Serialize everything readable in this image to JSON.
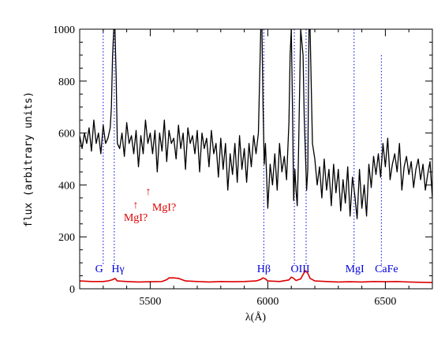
{
  "chart_data": {
    "type": "line",
    "title": "",
    "xlabel": "λ(Å)",
    "ylabel": "flux (arbitrary units)",
    "xlim": [
      5200,
      6700
    ],
    "ylim": [
      0,
      1000
    ],
    "x_ticks": [
      5500,
      6000,
      6500
    ],
    "y_ticks": [
      0,
      200,
      400,
      600,
      800,
      1000
    ],
    "grid": false,
    "colors": {
      "spectrum": "#000000",
      "error": "#dd0000",
      "lines": "#0000dd",
      "annotation": "#dd0000"
    },
    "series": [
      {
        "name": "",
        "x": [
          5200,
          5210,
          5220,
          5230,
          5240,
          5250,
          5260,
          5270,
          5280,
          5290,
          5300,
          5310,
          5320,
          5330,
          5335,
          5340,
          5345,
          5350,
          5355,
          5360,
          5370,
          5380,
          5390,
          5400,
          5410,
          5420,
          5430,
          5440,
          5450,
          5460,
          5470,
          5480,
          5490,
          5500,
          5510,
          5520,
          5530,
          5540,
          5550,
          5560,
          5570,
          5580,
          5590,
          5600,
          5610,
          5620,
          5630,
          5640,
          5650,
          5660,
          5670,
          5680,
          5690,
          5700,
          5710,
          5720,
          5730,
          5740,
          5750,
          5760,
          5770,
          5780,
          5790,
          5800,
          5810,
          5820,
          5830,
          5840,
          5850,
          5860,
          5870,
          5880,
          5890,
          5900,
          5910,
          5920,
          5930,
          5940,
          5950,
          5960,
          5965,
          5970,
          5975,
          5980,
          5985,
          5990,
          6000,
          6010,
          6020,
          6030,
          6040,
          6050,
          6060,
          6070,
          6080,
          6090,
          6095,
          6100,
          6105,
          6110,
          6115,
          6120,
          6125,
          6130,
          6140,
          6150,
          6155,
          6160,
          6165,
          6170,
          6175,
          6180,
          6190,
          6200,
          6210,
          6220,
          6230,
          6240,
          6250,
          6260,
          6270,
          6280,
          6290,
          6300,
          6310,
          6320,
          6330,
          6340,
          6350,
          6360,
          6370,
          6380,
          6390,
          6400,
          6410,
          6420,
          6430,
          6440,
          6450,
          6460,
          6470,
          6480,
          6490,
          6500,
          6510,
          6520,
          6530,
          6540,
          6550,
          6560,
          6570,
          6580,
          6590,
          6600,
          6610,
          6620,
          6630,
          6640,
          6650,
          6660,
          6670,
          6680,
          6690,
          6700
        ],
        "y": [
          590,
          540,
          600,
          560,
          620,
          530,
          650,
          560,
          600,
          520,
          630,
          560,
          580,
          620,
          700,
          900,
          1000,
          1000,
          820,
          560,
          540,
          600,
          510,
          640,
          560,
          590,
          520,
          610,
          470,
          590,
          520,
          650,
          560,
          600,
          520,
          610,
          450,
          600,
          530,
          650,
          490,
          610,
          560,
          580,
          500,
          630,
          540,
          600,
          460,
          620,
          560,
          590,
          520,
          610,
          450,
          600,
          540,
          580,
          470,
          610,
          520,
          560,
          430,
          580,
          460,
          560,
          380,
          520,
          440,
          560,
          410,
          590,
          460,
          540,
          410,
          560,
          470,
          590,
          520,
          600,
          800,
          1000,
          1000,
          700,
          480,
          560,
          310,
          480,
          400,
          520,
          380,
          560,
          450,
          510,
          420,
          640,
          900,
          1000,
          700,
          340,
          460,
          380,
          320,
          480,
          1000,
          900,
          660,
          520,
          380,
          460,
          1000,
          1000,
          560,
          500,
          400,
          470,
          350,
          500,
          380,
          460,
          320,
          480,
          370,
          460,
          300,
          420,
          330,
          470,
          280,
          430,
          360,
          270,
          460,
          310,
          400,
          280,
          480,
          390,
          510,
          440,
          520,
          430,
          560,
          470,
          580,
          420,
          480,
          520,
          450,
          560,
          380,
          470,
          510,
          440,
          490,
          390,
          460,
          500,
          420,
          480,
          380,
          440,
          490,
          350
        ],
        "color": "#000000"
      },
      {
        "name": "",
        "x": [
          5200,
          5250,
          5300,
          5320,
          5340,
          5350,
          5360,
          5400,
          5450,
          5500,
          5550,
          5570,
          5580,
          5600,
          5620,
          5650,
          5700,
          5750,
          5800,
          5850,
          5900,
          5950,
          5970,
          5980,
          5990,
          6000,
          6050,
          6090,
          6100,
          6110,
          6120,
          6140,
          6150,
          6160,
          6170,
          6180,
          6200,
          6250,
          6300,
          6350,
          6400,
          6450,
          6500,
          6550,
          6600,
          6650,
          6700
        ],
        "y": [
          30,
          28,
          28,
          30,
          35,
          40,
          30,
          28,
          26,
          27,
          28,
          35,
          42,
          42,
          40,
          30,
          28,
          26,
          28,
          27,
          28,
          30,
          36,
          42,
          38,
          30,
          28,
          34,
          45,
          40,
          32,
          38,
          55,
          70,
          60,
          40,
          30,
          28,
          26,
          27,
          26,
          28,
          27,
          28,
          26,
          25,
          24
        ],
        "color": "#dd0000"
      }
    ],
    "line_markers": [
      {
        "label": "G",
        "x": 5300
      },
      {
        "label": "Hγ",
        "x": 5347
      },
      {
        "label": "Hβ",
        "x": 5983
      },
      {
        "label": "OIII",
        "x": 6113
      },
      {
        "label": "OIII",
        "x": 6163
      },
      {
        "label": "MgI",
        "x": 6367
      },
      {
        "label": "CaFe",
        "x": 6483
      }
    ],
    "marker_labels": [
      "G",
      "Hγ",
      "Hβ",
      "OIII",
      "MgI",
      "CaFe"
    ],
    "annotations": [
      "MgI?",
      "MgI?"
    ]
  }
}
